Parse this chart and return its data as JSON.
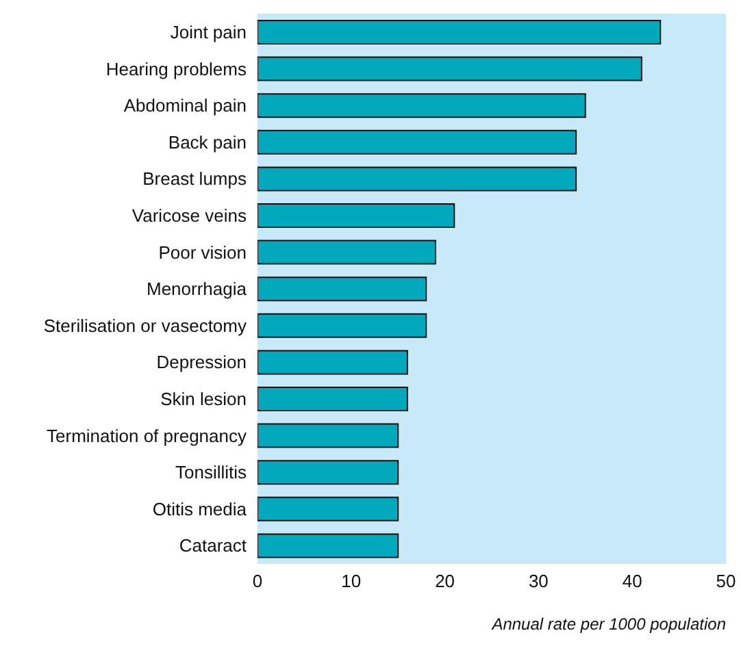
{
  "chart_data": {
    "type": "bar",
    "orientation": "horizontal",
    "xlabel": "Annual rate per 1000 population",
    "categories": [
      "Joint pain",
      "Hearing problems",
      "Abdominal pain",
      "Back pain",
      "Breast lumps",
      "Varicose veins",
      "Poor vision",
      "Menorrhagia",
      "Sterilisation or vasectomy",
      "Depression",
      "Skin lesion",
      "Termination of pregnancy",
      "Tonsillitis",
      "Otitis media",
      "Cataract"
    ],
    "values": [
      43,
      41,
      35,
      34,
      34,
      21,
      19,
      18,
      18,
      16,
      16,
      15,
      15,
      15,
      15
    ],
    "color": "#02a9bc",
    "xlim": [
      0,
      50
    ],
    "xticks": [
      0,
      10,
      20,
      30,
      40,
      50
    ]
  }
}
